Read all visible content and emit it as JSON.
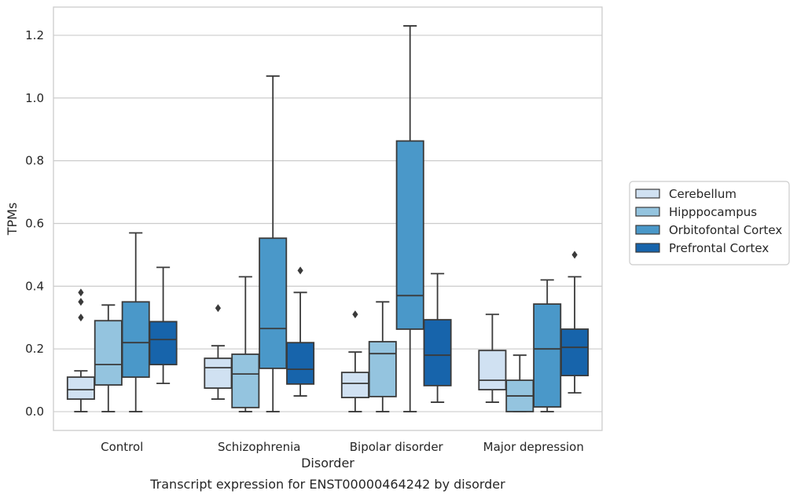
{
  "chart_data": {
    "type": "box",
    "title": "",
    "caption": "Transcript expression for ENST00000464242 by disorder",
    "xlabel": "Disorder",
    "ylabel": "TPMs",
    "ylim": [
      -0.06,
      1.29
    ],
    "yticks": [
      0.0,
      0.2,
      0.4,
      0.6,
      0.8,
      1.0,
      1.2
    ],
    "ytick_labels": [
      "0.0",
      "0.2",
      "0.4",
      "0.6",
      "0.8",
      "1.0",
      "1.2"
    ],
    "grid": "horizontal",
    "legend_position": "right",
    "categories": [
      "Control",
      "Schizophrenia",
      "Bipolar disorder",
      "Major depression"
    ],
    "series": [
      {
        "name": "Cerebellum",
        "color": "#d0e1f2",
        "boxes": [
          {
            "whislo": 0.0,
            "q1": 0.04,
            "med": 0.07,
            "q3": 0.11,
            "whishi": 0.13,
            "fliers": [
              0.3,
              0.35,
              0.38
            ]
          },
          {
            "whislo": 0.04,
            "q1": 0.075,
            "med": 0.14,
            "q3": 0.17,
            "whishi": 0.21,
            "fliers": [
              0.33
            ]
          },
          {
            "whislo": 0.0,
            "q1": 0.045,
            "med": 0.09,
            "q3": 0.125,
            "whishi": 0.19,
            "fliers": [
              0.31
            ]
          },
          {
            "whislo": 0.03,
            "q1": 0.07,
            "med": 0.1,
            "q3": 0.195,
            "whishi": 0.31,
            "fliers": []
          }
        ]
      },
      {
        "name": "Hipppocampus",
        "color": "#94c4df",
        "boxes": [
          {
            "whislo": 0.0,
            "q1": 0.085,
            "med": 0.15,
            "q3": 0.29,
            "whishi": 0.34,
            "fliers": []
          },
          {
            "whislo": 0.0,
            "q1": 0.013,
            "med": 0.12,
            "q3": 0.183,
            "whishi": 0.43,
            "fliers": []
          },
          {
            "whislo": 0.0,
            "q1": 0.048,
            "med": 0.185,
            "q3": 0.223,
            "whishi": 0.35,
            "fliers": []
          },
          {
            "whislo": 0.0,
            "q1": 0.0,
            "med": 0.05,
            "q3": 0.1,
            "whishi": 0.18,
            "fliers": []
          }
        ]
      },
      {
        "name": "Orbitofontal Cortex",
        "color": "#4a98c9",
        "boxes": [
          {
            "whislo": 0.0,
            "q1": 0.11,
            "med": 0.22,
            "q3": 0.35,
            "whishi": 0.57,
            "fliers": []
          },
          {
            "whislo": 0.0,
            "q1": 0.138,
            "med": 0.265,
            "q3": 0.553,
            "whishi": 1.07,
            "fliers": []
          },
          {
            "whislo": 0.0,
            "q1": 0.263,
            "med": 0.37,
            "q3": 0.863,
            "whishi": 1.23,
            "fliers": []
          },
          {
            "whislo": 0.0,
            "q1": 0.015,
            "med": 0.2,
            "q3": 0.343,
            "whishi": 0.42,
            "fliers": []
          }
        ]
      },
      {
        "name": "Prefrontal Cortex",
        "color": "#1764ab",
        "boxes": [
          {
            "whislo": 0.09,
            "q1": 0.15,
            "med": 0.23,
            "q3": 0.287,
            "whishi": 0.46,
            "fliers": []
          },
          {
            "whislo": 0.05,
            "q1": 0.088,
            "med": 0.135,
            "q3": 0.22,
            "whishi": 0.38,
            "fliers": [
              0.45
            ]
          },
          {
            "whislo": 0.03,
            "q1": 0.083,
            "med": 0.18,
            "q3": 0.293,
            "whishi": 0.44,
            "fliers": []
          },
          {
            "whislo": 0.06,
            "q1": 0.115,
            "med": 0.205,
            "q3": 0.263,
            "whishi": 0.43,
            "fliers": [
              0.5
            ]
          }
        ]
      }
    ]
  }
}
